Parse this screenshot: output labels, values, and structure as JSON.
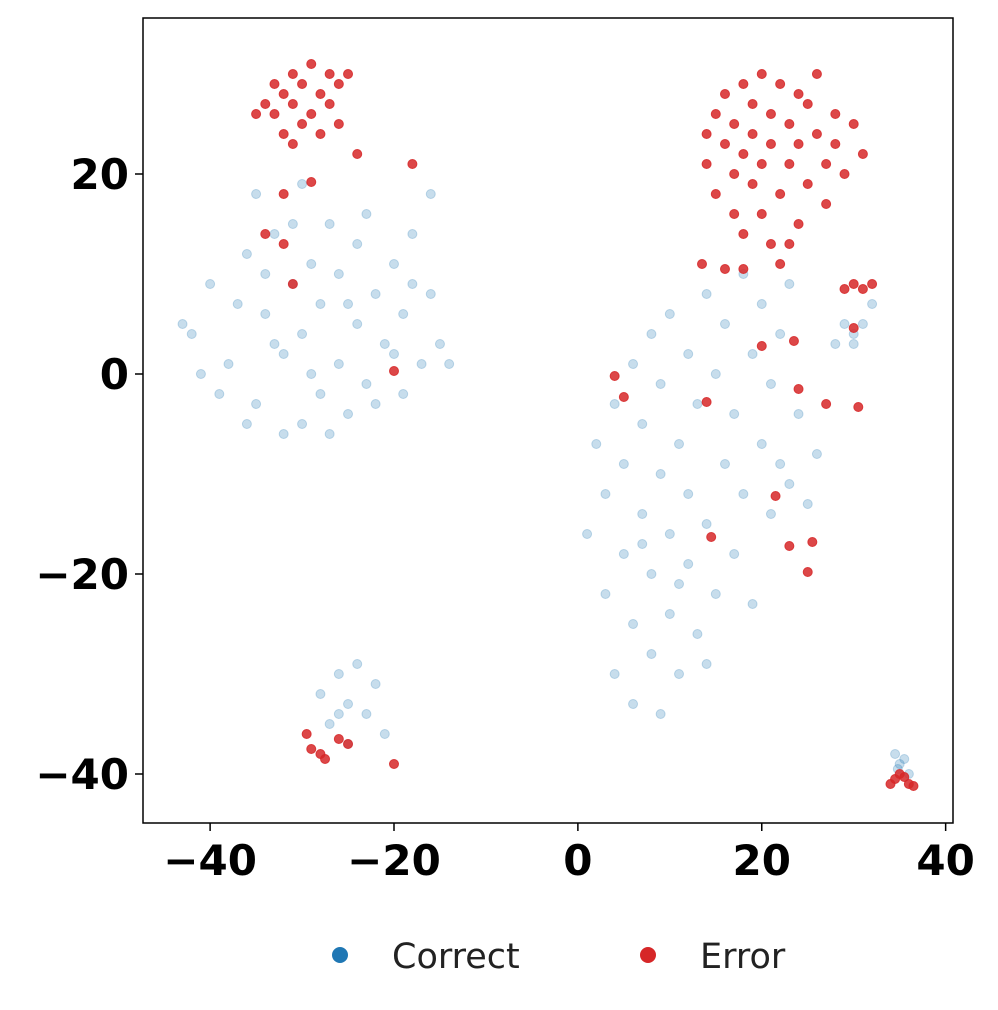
{
  "chart_data": {
    "type": "scatter",
    "xlim": [
      -47.3,
      40.8
    ],
    "ylim": [
      -44.9,
      35.6
    ],
    "xticks": [
      {
        "value": -40,
        "label": "−40"
      },
      {
        "value": -20,
        "label": "−20"
      },
      0,
      20,
      40
    ],
    "yticks": [
      {
        "value": -40,
        "label": "−40"
      },
      {
        "value": -20,
        "label": "−20"
      },
      0,
      20
    ],
    "grid": false,
    "legend": "bottom",
    "series": [
      {
        "name": "Correct",
        "color": "#1f77b4",
        "opacity": 0.25,
        "x": [
          -42,
          -40,
          -38,
          -36,
          -35,
          -34,
          -33,
          -32,
          -31,
          -30,
          -30,
          -29,
          -28,
          -28,
          -27,
          -26,
          -26,
          -25,
          -24,
          -24,
          -23,
          -22,
          -21,
          -20,
          -19,
          -19,
          -18,
          -17,
          -16,
          -15,
          -14,
          -39,
          -41,
          -37,
          -36,
          -34,
          -32,
          -31,
          -29,
          -27,
          -25,
          -23,
          -22,
          -20,
          -18,
          -33,
          -35,
          -30,
          -16,
          -43,
          1,
          2,
          3,
          3,
          4,
          4,
          5,
          5,
          6,
          6,
          6,
          7,
          7,
          8,
          8,
          8,
          9,
          9,
          9,
          10,
          10,
          10,
          11,
          11,
          12,
          12,
          12,
          13,
          13,
          14,
          14,
          15,
          15,
          16,
          16,
          17,
          17,
          18,
          18,
          19,
          19,
          20,
          20,
          21,
          21,
          22,
          22,
          23,
          23,
          24,
          25,
          26,
          7,
          11,
          14,
          -28,
          -27,
          -26,
          -25,
          -25,
          -24,
          -23,
          -22,
          -21,
          -26,
          34.5,
          35,
          35.5,
          36,
          34.8,
          28,
          29,
          30,
          31,
          32,
          30
        ],
        "y": [
          4,
          9,
          1,
          12,
          -3,
          6,
          14,
          2,
          9,
          -5,
          4,
          11,
          -2,
          7,
          15,
          1,
          10,
          -4,
          5,
          13,
          -1,
          8,
          3,
          11,
          -2,
          6,
          14,
          1,
          8,
          3,
          1,
          -2,
          0,
          7,
          -5,
          10,
          -6,
          15,
          0,
          -6,
          7,
          16,
          -3,
          2,
          9,
          3,
          18,
          19,
          18,
          5,
          -16,
          -7,
          -22,
          -12,
          -30,
          -3,
          -18,
          -9,
          -33,
          -25,
          1,
          -14,
          -5,
          -28,
          -20,
          4,
          -34,
          -10,
          -1,
          -24,
          -16,
          6,
          -30,
          -7,
          -19,
          2,
          -12,
          -26,
          -3,
          -15,
          8,
          -22,
          0,
          -9,
          5,
          -18,
          -4,
          10,
          -12,
          -23,
          2,
          -7,
          7,
          -14,
          -1,
          4,
          -9,
          -11,
          9,
          -4,
          -13,
          -8,
          -17,
          -21,
          -29,
          -32,
          -35,
          -30,
          -33,
          -37,
          -29,
          -34,
          -31,
          -36,
          -34,
          -38,
          -39,
          -38.5,
          -40,
          -39.5,
          3,
          5,
          4,
          5,
          7,
          3
        ]
      },
      {
        "name": "Error",
        "color": "#d62728",
        "opacity": 0.85,
        "x": [
          -34,
          -33,
          -33,
          -32,
          -32,
          -31,
          -31,
          -30,
          -30,
          -29,
          -29,
          -28,
          -28,
          -27,
          -27,
          -26,
          -26,
          -31,
          -25,
          -35,
          14,
          14,
          15,
          15,
          16,
          16,
          17,
          17,
          17,
          18,
          18,
          18,
          19,
          19,
          19,
          20,
          20,
          20,
          21,
          21,
          21,
          22,
          22,
          22,
          23,
          23,
          24,
          24,
          24,
          25,
          25,
          26,
          26,
          27,
          27,
          28,
          28,
          29,
          30,
          31,
          16,
          18,
          13.5,
          23,
          -29.5,
          -29,
          -28,
          -27.5,
          -25,
          -20,
          -26,
          34,
          34.5,
          35,
          36,
          36.5,
          35.5,
          29,
          30,
          31,
          32,
          30,
          -32,
          -29,
          -34,
          -32,
          -31,
          -24,
          -18,
          -20,
          4,
          5,
          14,
          14.5,
          20,
          21.5,
          23,
          24,
          25.5,
          25,
          27,
          30.5,
          23.5
        ],
        "y": [
          27,
          29,
          26,
          28,
          24,
          30,
          27,
          25,
          29,
          31,
          26,
          28,
          24,
          30,
          27,
          29,
          25,
          23,
          30,
          26,
          24,
          21,
          26,
          18,
          23,
          28,
          20,
          25,
          16,
          29,
          22,
          14,
          27,
          19,
          24,
          30,
          21,
          16,
          26,
          13,
          23,
          29,
          18,
          11,
          25,
          21,
          28,
          15,
          23,
          27,
          19,
          24,
          30,
          21,
          17,
          26,
          23,
          20,
          25,
          22,
          10.5,
          10.5,
          11,
          13,
          -36,
          -37.5,
          -38,
          -38.5,
          -37,
          -39,
          -36.5,
          -41,
          -40.5,
          -40,
          -41,
          -41.2,
          -40.3,
          8.5,
          9,
          8.5,
          9,
          4.6,
          18,
          19.2,
          14,
          13,
          9,
          22,
          21,
          0.3,
          -0.2,
          -2.3,
          -2.8,
          -16.3,
          2.8,
          -12.2,
          -17.2,
          -1.5,
          -16.8,
          -19.8,
          -3,
          -3.3,
          3.3
        ]
      }
    ]
  }
}
